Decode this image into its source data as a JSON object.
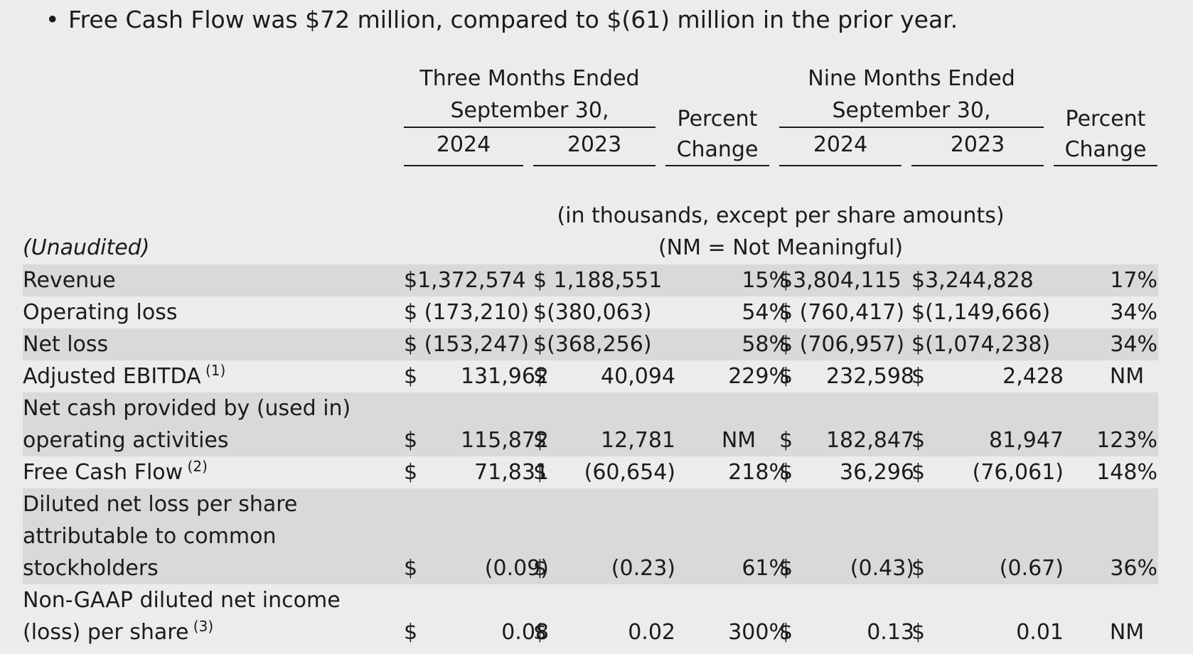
{
  "bullet": {
    "text": "Free Cash Flow was $72 million, compared to $(61) million in the prior year."
  },
  "table": {
    "header": {
      "three_months_line1": "Three Months Ended",
      "three_months_line2": "September 30,",
      "nine_months_line1": "Nine Months Ended",
      "nine_months_line2": "September 30,",
      "percent_line1": "Percent",
      "percent_line2": "Change",
      "year_2024": "2024",
      "year_2023": "2023"
    },
    "units_note": "(in thousands, except per share amounts)",
    "nm_note": "(NM = Not Meaningful)",
    "unaudited": "(Unaudited)",
    "rows": [
      {
        "label": [
          "Revenue"
        ],
        "sup": "",
        "c1": "$1,372,574",
        "c2": "$ 1,188,551",
        "p1": "15%",
        "c3": "$3,804,115",
        "c4": "$3,244,828",
        "p2": "17%"
      },
      {
        "label": [
          "Operating loss"
        ],
        "sup": "",
        "c1": "$ (173,210)",
        "c2": "$(380,063)",
        "p1": "54%",
        "c3": "$ (760,417)",
        "c4": "$(1,149,666)",
        "p2": "34%"
      },
      {
        "label": [
          "Net loss"
        ],
        "sup": "",
        "c1": "$ (153,247)",
        "c2": "$(368,256)",
        "p1": "58%",
        "c3": "$ (706,957)",
        "c4": "$(1,074,238)",
        "p2": "34%"
      },
      {
        "label": [
          "Adjusted EBITDA"
        ],
        "sup": "(1)",
        "c1": "131,962",
        "c2": "40,094",
        "p1": "229%",
        "c3": "232,598",
        "c4": "2,428",
        "p2": "NM"
      },
      {
        "label": [
          "Net cash provided by (used in)",
          "operating activities"
        ],
        "sup": "",
        "c1": "115,872",
        "c2": "12,781",
        "p1": "NM",
        "c3": "182,847",
        "c4": "81,947",
        "p2": "123%"
      },
      {
        "label": [
          "Free Cash Flow"
        ],
        "sup": "(2)",
        "c1": "71,831",
        "c2": "(60,654)",
        "p1": "218%",
        "c3": "36,296",
        "c4": "(76,061)",
        "p2": "148%"
      },
      {
        "label": [
          "Diluted net loss per share",
          "attributable to common",
          "stockholders"
        ],
        "sup": "",
        "c1": "(0.09)",
        "c2": "(0.23)",
        "p1": "61%",
        "c3": "(0.43)",
        "c4": "(0.67)",
        "p2": "36%"
      },
      {
        "label": [
          "Non-GAAP diluted net income",
          "(loss) per share"
        ],
        "sup": "(3)",
        "c1": "0.08",
        "c2": "0.02",
        "p1": "300%",
        "c3": "0.13",
        "c4": "0.01",
        "p2": "NM"
      }
    ],
    "currency_symbol": "$"
  }
}
